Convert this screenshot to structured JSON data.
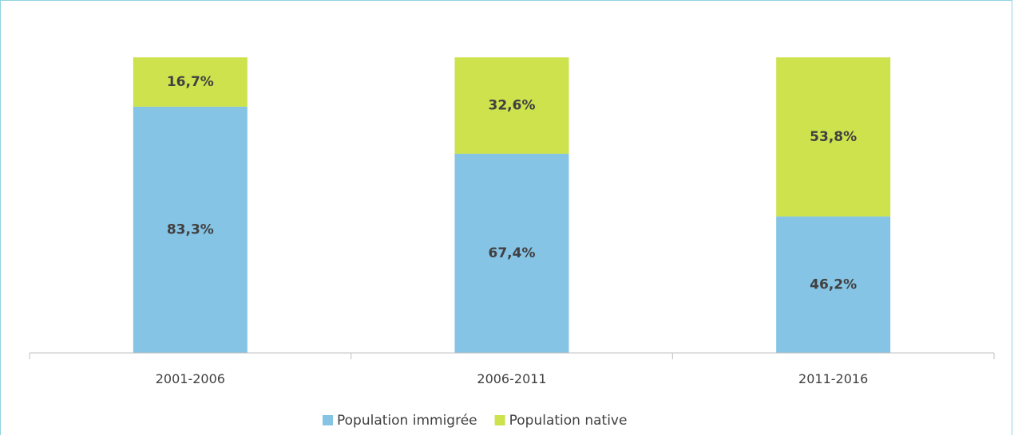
{
  "chart_data": {
    "type": "bar",
    "stacked": true,
    "categories": [
      "2001-2006",
      "2006-2011",
      "2011-2016"
    ],
    "series": [
      {
        "name": "Population immigrée",
        "values": [
          83.3,
          67.4,
          46.2
        ],
        "labels": [
          "83,3%",
          "67,4%",
          "46,2%"
        ],
        "color": "#86c4e6"
      },
      {
        "name": "Population native",
        "values": [
          16.7,
          32.6,
          53.8
        ],
        "labels": [
          "16,7%",
          "32,6%",
          "53,8%"
        ],
        "color": "#cde24d"
      }
    ],
    "ylim": [
      0,
      100
    ],
    "grid": false,
    "legend": "bottom"
  }
}
